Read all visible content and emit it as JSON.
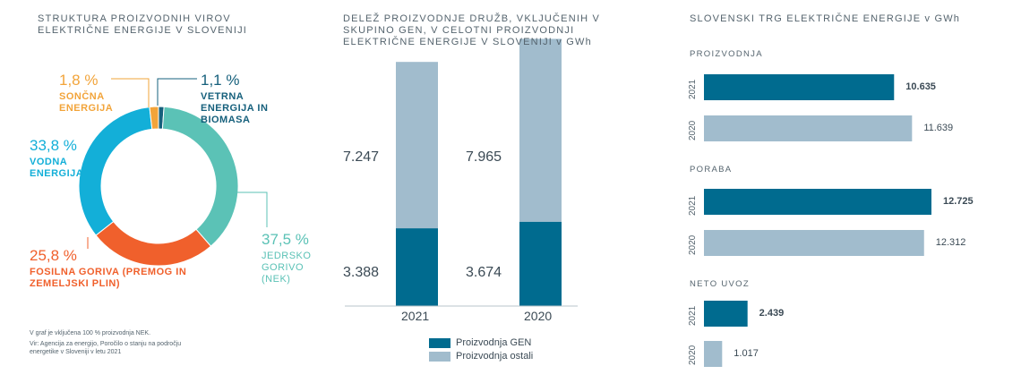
{
  "colors": {
    "nuclear": "#5bc2b6",
    "fossil": "#f0602c",
    "hydro": "#13afd8",
    "solar": "#f2a43a",
    "wind": "#16607c",
    "gen": "#006b8f",
    "others": "#a1bccd"
  },
  "chart_data": [
    {
      "type": "pie",
      "title": "STRUKTURA PROIZVODNIH VIROV ELEKTRIČNE ENERGIJE V SLOVENIJI",
      "slices": [
        {
          "pct": "1,1 %",
          "label": "VETRNA ENERGIJA IN BIOMASA",
          "value": 1.1,
          "color_key": "wind"
        },
        {
          "pct": "37,5 %",
          "label": "JEDRSKO GORIVO (NEK)",
          "value": 37.5,
          "color_key": "nuclear"
        },
        {
          "pct": "25,8 %",
          "label": "FOSILNA GORIVA (PREMOG IN ZEMELJSKI PLIN)",
          "value": 25.8,
          "color_key": "fossil"
        },
        {
          "pct": "33,8 %",
          "label": "VODNA ENERGIJA",
          "value": 33.8,
          "color_key": "hydro"
        },
        {
          "pct": "1,8 %",
          "label": "SONČNA ENERGIJA",
          "value": 1.8,
          "color_key": "solar"
        }
      ],
      "notes": [
        "V graf je vključena 100 % proizvodnja NEK.",
        "Vir: Agencija za energijo, Poročilo o stanju na področju energetike v Sloveniji v letu 2021"
      ]
    },
    {
      "type": "bar",
      "stacked": true,
      "title": "DELEŽ PROIZVODNJE DRUŽB, VKLJUČENIH V SKUPINO GEN, V CELOTNI PROIZVODNJI ELEKTRIČNE ENERGIJE V SLOVENIJI v GWh",
      "categories": [
        "2021",
        "2020"
      ],
      "series": [
        {
          "name": "Proizvodnja GEN",
          "values": [
            3388,
            3674
          ],
          "labels": [
            "3.388",
            "3.674"
          ]
        },
        {
          "name": "Proizvodnja ostali",
          "values": [
            7247,
            7965
          ],
          "labels": [
            "7.247",
            "7.965"
          ]
        }
      ]
    },
    {
      "type": "bar",
      "orientation": "horizontal",
      "title": "SLOVENSKI TRG ELEKTRIČNE ENERGIJE v GWh",
      "xlim": [
        0,
        12725
      ],
      "groups": [
        {
          "name": "PROIZVODNJA",
          "rows": [
            {
              "year": "2021",
              "value": 10635,
              "label": "10.635"
            },
            {
              "year": "2020",
              "value": 11639,
              "label": "11.639"
            }
          ]
        },
        {
          "name": "PORABA",
          "rows": [
            {
              "year": "2021",
              "value": 12725,
              "label": "12.725"
            },
            {
              "year": "2020",
              "value": 12312,
              "label": "12.312"
            }
          ]
        },
        {
          "name": "NETO UVOZ",
          "rows": [
            {
              "year": "2021",
              "value": 2439,
              "label": "2.439"
            },
            {
              "year": "2020",
              "value": 1017,
              "label": "1.017"
            }
          ]
        }
      ]
    }
  ]
}
